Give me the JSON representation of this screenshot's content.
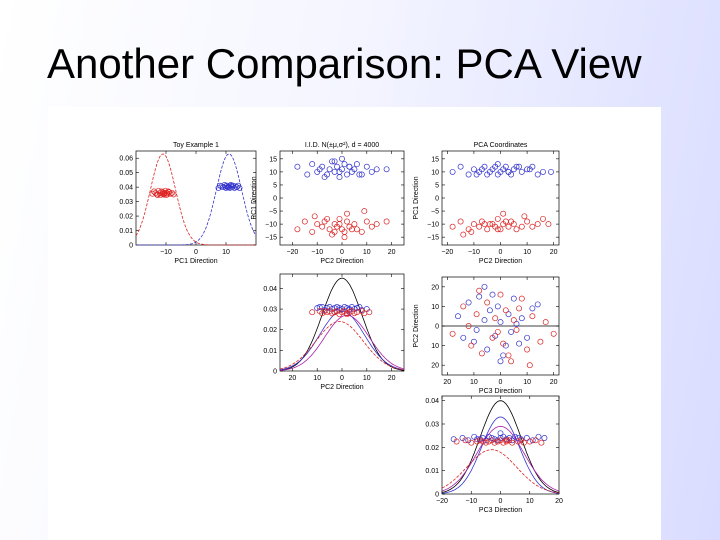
{
  "slide_title": "Another Comparison: PCA View",
  "chart_data": [
    {
      "type": "scatter+line",
      "panel": "top-left",
      "title": "Toy Example 1",
      "xlabel": "PC1 Direction",
      "ylabel": "",
      "xlim": [
        -20,
        20
      ],
      "ylim": [
        0,
        0.065
      ],
      "xticks": [
        -10,
        0,
        10
      ],
      "xtick_labels": [
        "−10",
        "0",
        "10"
      ],
      "yticks": [
        0,
        0.01,
        0.02,
        0.03,
        0.04,
        0.05,
        0.06
      ],
      "ytick_labels": [
        "0",
        "0.01",
        "0.02",
        "0.03",
        "0.04",
        "0.05",
        "0.06"
      ],
      "grid": false,
      "series": [
        {
          "color": "#dd2222",
          "curve_center": -11,
          "curve_sd": 4.2,
          "curve_peak": 0.063,
          "points_x": [
            -14.5,
            -14,
            -13.5,
            -13,
            -12.5,
            -12,
            -11.8,
            -11.5,
            -11.2,
            -11,
            -10.8,
            -10.5,
            -10.2,
            -10,
            -9.8,
            -9.5,
            -9,
            -8.5,
            -8,
            -7.5,
            -12.8,
            -9.2,
            -10.6
          ],
          "points_y": [
            0.0355,
            0.037,
            0.036,
            0.035,
            0.0375,
            0.036,
            0.0345,
            0.037,
            0.0355,
            0.0365,
            0.035,
            0.036,
            0.0375,
            0.0345,
            0.036,
            0.035,
            0.0365,
            0.0355,
            0.036,
            0.035,
            0.0345,
            0.037,
            0.0355
          ]
        },
        {
          "color": "#3333cc",
          "curve_center": 11,
          "curve_sd": 4.2,
          "curve_peak": 0.063,
          "points_x": [
            7.5,
            8,
            8.5,
            9,
            9.5,
            10,
            10.3,
            10.6,
            11,
            11.3,
            11.6,
            12,
            12.4,
            12.8,
            13.2,
            13.6,
            14,
            14.5,
            9.8,
            11.8,
            10.8
          ],
          "points_y": [
            0.0395,
            0.041,
            0.0405,
            0.04,
            0.0415,
            0.0395,
            0.041,
            0.04,
            0.0405,
            0.0395,
            0.0415,
            0.04,
            0.041,
            0.0395,
            0.0405,
            0.04,
            0.041,
            0.0395,
            0.0405,
            0.041,
            0.04
          ]
        }
      ]
    },
    {
      "type": "scatter",
      "panel": "top-middle",
      "title": "I.I.D. N(±μ,σ²), d = 4000",
      "xlabel": "PC2 Direction",
      "ylabel": "PC1 Direction",
      "xlim": [
        -25,
        25
      ],
      "ylim": [
        -18,
        18
      ],
      "xticks": [
        -20,
        -10,
        0,
        10,
        20
      ],
      "xtick_labels": [
        "−20",
        "−10",
        "0",
        "10",
        "20"
      ],
      "yticks": [
        15,
        10,
        5,
        0,
        -5,
        -10,
        -15
      ],
      "ytick_labels": [
        "15",
        "10",
        "5",
        "0",
        "−5",
        "−10",
        "−15"
      ],
      "series": [
        {
          "color": "#3333cc",
          "x": [
            -18,
            -14,
            -12,
            -10,
            -8,
            -6,
            -5,
            -4,
            -3,
            -2,
            -1,
            0,
            1,
            2,
            3,
            4,
            5,
            6,
            8,
            10,
            12,
            14,
            -7,
            -1,
            3,
            7,
            -9,
            0,
            18,
            -3
          ],
          "y": [
            12,
            9,
            13,
            10,
            12,
            9,
            11,
            14,
            10,
            12,
            8,
            11,
            13,
            9,
            12,
            10,
            11,
            13,
            9,
            12,
            10,
            11,
            8,
            10,
            12,
            9,
            11,
            15,
            11,
            14
          ]
        },
        {
          "color": "#dd2222",
          "x": [
            -18,
            -15,
            -12,
            -10,
            -8,
            -7,
            -5,
            -4,
            -3,
            -2,
            -1,
            0,
            1,
            2,
            3,
            5,
            6,
            8,
            10,
            12,
            14,
            -6,
            -1,
            4,
            9,
            -11,
            1,
            18,
            -3,
            2
          ],
          "y": [
            -12,
            -9,
            -13,
            -10,
            -11,
            -9,
            -12,
            -14,
            -10,
            -11,
            -8,
            -12,
            -13,
            -9,
            -11,
            -10,
            -12,
            -13,
            -9,
            -11,
            -10,
            -8,
            -10,
            -12,
            -5,
            -7,
            -15,
            -9,
            -13,
            -6
          ]
        }
      ]
    },
    {
      "type": "scatter",
      "panel": "top-right",
      "title": "PCA Coordinates",
      "xlabel": "PC2 Direction",
      "ylabel": "PC1 Direction",
      "xlim": [
        -22,
        22
      ],
      "ylim": [
        -18,
        18
      ],
      "xticks": [
        -20,
        -10,
        0,
        10,
        20
      ],
      "xtick_labels": [
        "−20",
        "−10",
        "0",
        "10",
        "20"
      ],
      "yticks": [
        15,
        10,
        5,
        0,
        -5,
        -10,
        -15
      ],
      "ytick_labels": [
        "15",
        "10",
        "5",
        "0",
        "−5",
        "−10",
        "−15"
      ],
      "series": [
        {
          "color": "#3333cc",
          "x": [
            -18,
            -15,
            -12,
            -10,
            -8,
            -6,
            -5,
            -4,
            -3,
            -2,
            -1,
            0,
            1,
            2,
            3,
            4,
            5,
            6,
            8,
            10,
            12,
            14,
            16,
            -7,
            -1,
            3,
            7,
            -9,
            11,
            19
          ],
          "y": [
            10,
            12,
            9,
            11,
            10,
            12,
            9,
            10,
            11,
            12,
            9,
            10,
            11,
            12,
            10,
            9,
            11,
            12,
            10,
            11,
            12,
            9,
            10,
            11,
            13,
            10,
            12,
            9,
            11,
            10
          ]
        },
        {
          "color": "#dd2222",
          "x": [
            -18,
            -15,
            -12,
            -10,
            -8,
            -7,
            -5,
            -4,
            -3,
            -2,
            -1,
            0,
            1,
            2,
            3,
            5,
            6,
            8,
            10,
            12,
            14,
            16,
            -6,
            -1,
            4,
            9,
            -11,
            1,
            18,
            -14
          ],
          "y": [
            -11,
            -9,
            -12,
            -10,
            -11,
            -9,
            -12,
            -10,
            -10,
            -11,
            -8,
            -12,
            -10,
            -9,
            -11,
            -10,
            -12,
            -11,
            -9,
            -11,
            -10,
            -8,
            -10,
            -12,
            -9,
            -7,
            -13,
            -6,
            -10,
            -14
          ]
        }
      ]
    },
    {
      "type": "scatter+line",
      "panel": "middle-middle",
      "title": "",
      "xlabel": "PC2 Direction",
      "ylabel": "",
      "xlim": [
        -25,
        25
      ],
      "ylim": [
        0,
        0.047
      ],
      "xticks": [
        -20,
        -10,
        0,
        10,
        20
      ],
      "xtick_labels": [
        "20",
        "10",
        "0",
        "10",
        "20"
      ],
      "yticks": [
        0,
        0.01,
        0.02,
        0.03,
        0.04
      ],
      "ytick_labels": [
        "0",
        "0.01",
        "0.02",
        "0.03",
        "0.04"
      ],
      "series": [
        {
          "color": "#3333cc",
          "x": [
            -10,
            -8,
            -7,
            -6,
            -5,
            -4,
            -3,
            -2,
            -1,
            0,
            1,
            2,
            3,
            4,
            5,
            6,
            7,
            8,
            10,
            -9,
            -1,
            3
          ],
          "y": [
            0.0305,
            0.031,
            0.0295,
            0.0305,
            0.031,
            0.03,
            0.0305,
            0.031,
            0.0295,
            0.03,
            0.031,
            0.0305,
            0.0295,
            0.031,
            0.03,
            0.0305,
            0.031,
            0.0295,
            0.03,
            0.031,
            0.0305,
            0.03
          ]
        },
        {
          "color": "#dd2222",
          "x": [
            -12,
            -9,
            -8,
            -6,
            -5,
            -4,
            -3,
            -2,
            -1,
            0,
            1,
            2,
            3,
            4,
            5,
            6,
            8,
            9,
            11,
            -7,
            2,
            -3
          ],
          "y": [
            0.0285,
            0.029,
            0.028,
            0.0285,
            0.029,
            0.028,
            0.0285,
            0.029,
            0.0275,
            0.0285,
            0.029,
            0.028,
            0.0285,
            0.029,
            0.028,
            0.0285,
            0.029,
            0.028,
            0.0285,
            0.029,
            0.0275,
            0.0285
          ]
        }
      ],
      "curves": [
        {
          "color": "#000000",
          "center": 0,
          "sd": 8,
          "peak": 0.045
        },
        {
          "color": "#3333cc",
          "center": 0,
          "sd": 9,
          "peak": 0.029
        },
        {
          "color": "#dd2222",
          "center": -1,
          "sd": 9.5,
          "peak": 0.024
        },
        {
          "color": "#aa22aa",
          "center": 2,
          "sd": 9,
          "peak": 0.027
        }
      ]
    },
    {
      "type": "scatter",
      "panel": "middle-right",
      "title": "",
      "xlabel": "PC3 Direction",
      "ylabel": "PC2 Direction",
      "xlim": [
        -22,
        22
      ],
      "ylim": [
        -25,
        25
      ],
      "xticks": [
        -20,
        -10,
        0,
        10,
        20
      ],
      "xtick_labels": [
        "20",
        "10",
        "0",
        "10",
        "20"
      ],
      "yticks": [
        20,
        10,
        0,
        -10,
        -20
      ],
      "ytick_labels": [
        "20",
        "10",
        "0",
        "10",
        "20"
      ],
      "series": [
        {
          "color": "#3333cc",
          "x": [
            -16,
            -12,
            -10,
            -8,
            -6,
            -5,
            -4,
            -2,
            -1,
            0,
            1,
            3,
            4,
            5,
            7,
            8,
            10,
            12,
            -9,
            -3,
            2,
            6,
            -14,
            14,
            0,
            -6
          ],
          "y": [
            5,
            12,
            -8,
            15,
            3,
            -12,
            8,
            -5,
            10,
            2,
            -15,
            6,
            -3,
            14,
            -9,
            4,
            -6,
            9,
            -2,
            16,
            -10,
            1,
            -6,
            11,
            -18,
            20
          ]
        },
        {
          "color": "#dd2222",
          "x": [
            -18,
            -14,
            -11,
            -9,
            -7,
            -5,
            -3,
            -2,
            0,
            1,
            2,
            4,
            5,
            6,
            8,
            10,
            12,
            15,
            17,
            -8,
            -1,
            3,
            7,
            -12,
            11,
            20
          ],
          "y": [
            -4,
            10,
            -10,
            6,
            -14,
            12,
            -6,
            4,
            16,
            -9,
            8,
            -18,
            3,
            -2,
            14,
            -12,
            5,
            -8,
            2,
            18,
            -3,
            -15,
            9,
            0,
            -20,
            -4
          ]
        }
      ],
      "hline_y": 0
    },
    {
      "type": "scatter+line",
      "panel": "bottom-right",
      "title": "",
      "xlabel": "PC3 Direction",
      "ylabel": "",
      "xlim": [
        -20,
        20
      ],
      "ylim": [
        0,
        0.042
      ],
      "xticks": [
        -20,
        -10,
        0,
        10,
        20
      ],
      "xtick_labels": [
        "−20",
        "−10",
        "0",
        "10",
        "20"
      ],
      "yticks": [
        0,
        0.01,
        0.02,
        0.03,
        0.04
      ],
      "ytick_labels": [
        "0",
        "0.01",
        "0.02",
        "0.03",
        "0.04"
      ],
      "series": [
        {
          "color": "#3333cc",
          "x": [
            -16,
            -13,
            -11,
            -9,
            -7,
            -6,
            -5,
            -4,
            -3,
            -2,
            -1,
            0,
            1,
            2,
            3,
            4,
            5,
            6,
            7,
            9,
            11,
            13,
            15,
            -8,
            0
          ],
          "y": [
            0.0235,
            0.024,
            0.023,
            0.0245,
            0.0235,
            0.024,
            0.023,
            0.0245,
            0.024,
            0.0235,
            0.023,
            0.024,
            0.0245,
            0.0235,
            0.024,
            0.023,
            0.0245,
            0.024,
            0.0235,
            0.024,
            0.023,
            0.0245,
            0.024,
            0.0235,
            0.026
          ]
        },
        {
          "color": "#dd2222",
          "x": [
            -15,
            -12,
            -10,
            -8,
            -7,
            -5,
            -4,
            -3,
            -2,
            -1,
            0,
            1,
            2,
            3,
            4,
            6,
            7,
            8,
            10,
            12,
            14,
            -6,
            2
          ],
          "y": [
            0.0225,
            0.023,
            0.022,
            0.0225,
            0.023,
            0.022,
            0.0225,
            0.023,
            0.022,
            0.0225,
            0.023,
            0.022,
            0.0225,
            0.023,
            0.022,
            0.0225,
            0.023,
            0.022,
            0.0225,
            0.023,
            0.022,
            0.0225,
            0.023
          ]
        }
      ],
      "curves": [
        {
          "color": "#000000",
          "center": 0,
          "sd": 7,
          "peak": 0.04
        },
        {
          "color": "#3333cc",
          "center": 0,
          "sd": 6.5,
          "peak": 0.033
        },
        {
          "color": "#dd2222",
          "center": -3,
          "sd": 8.5,
          "peak": 0.019
        },
        {
          "color": "#aa22aa",
          "center": 0,
          "sd": 8,
          "peak": 0.029
        }
      ]
    }
  ]
}
